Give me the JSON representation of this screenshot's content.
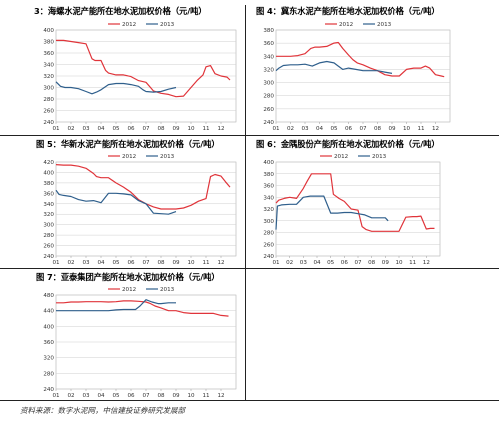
{
  "source": "资料来源：数字水泥网，中信建投证券研究发展部",
  "chart_data": [
    {
      "type": "line",
      "title": "3：海螺水泥产能所在地水泥加权价格（元/吨）",
      "categories": [
        "01",
        "02",
        "03",
        "04",
        "05",
        "06",
        "07",
        "08",
        "09",
        "10",
        "11",
        "12"
      ],
      "ylim": [
        240,
        400
      ],
      "yticks": [
        240,
        260,
        280,
        300,
        320,
        340,
        360,
        380,
        400
      ],
      "legend": "top",
      "series": [
        {
          "name": "2012",
          "color": "#e0343a",
          "x": [
            1,
            1.5,
            2,
            2.5,
            3,
            3.4,
            3.6,
            4,
            4.3,
            4.5,
            5,
            5.5,
            6,
            6.5,
            7,
            7.3,
            7.5,
            8,
            8.5,
            9,
            9.5,
            10,
            10.4,
            10.8,
            11,
            11.3,
            11.6,
            12,
            12.4,
            12.6
          ],
          "values": [
            382,
            382,
            380,
            378,
            376,
            350,
            347,
            347,
            330,
            325,
            322,
            322,
            319,
            312,
            309,
            300,
            294,
            290,
            288,
            284,
            285,
            300,
            312,
            322,
            336,
            338,
            324,
            320,
            318,
            313
          ]
        },
        {
          "name": "2013",
          "color": "#2f5f8c",
          "x": [
            1,
            1.3,
            1.6,
            2,
            2.5,
            3,
            3.4,
            3.7,
            4,
            4.5,
            5,
            5.5,
            6,
            6.5,
            6.8,
            7,
            7.5,
            8,
            8.5,
            9
          ],
          "values": [
            310,
            302,
            300,
            300,
            298,
            293,
            289,
            292,
            296,
            305,
            307,
            307,
            305,
            302,
            296,
            293,
            292,
            293,
            297,
            300
          ]
        }
      ]
    },
    {
      "type": "line",
      "title": "图 4：冀东水泥产能所在地水泥加权价格（元/吨）",
      "categories": [
        "01",
        "02",
        "03",
        "04",
        "05",
        "06",
        "07",
        "08",
        "09",
        "10",
        "11",
        "12"
      ],
      "ylim": [
        240,
        380
      ],
      "yticks": [
        240,
        260,
        280,
        300,
        320,
        340,
        360,
        380
      ],
      "legend": "top",
      "series": [
        {
          "name": "2012",
          "color": "#e0343a",
          "x": [
            1,
            1.5,
            2,
            2.5,
            3,
            3.4,
            3.7,
            4,
            4.5,
            5,
            5.3,
            5.6,
            6,
            6.3,
            6.6,
            7,
            7.5,
            8,
            8.5,
            9,
            9.5,
            10,
            10.5,
            11,
            11.3,
            11.6,
            12,
            12.4,
            12.6
          ],
          "values": [
            340,
            340,
            340,
            341,
            344,
            352,
            354,
            354,
            355,
            360,
            361,
            352,
            342,
            335,
            330,
            327,
            322,
            318,
            312,
            310,
            310,
            320,
            322,
            322,
            325,
            322,
            312,
            310,
            309
          ]
        },
        {
          "name": "2013",
          "color": "#2f5f8c",
          "x": [
            1,
            1.2,
            1.5,
            2,
            2.5,
            3,
            3.5,
            4,
            4.5,
            5,
            5.3,
            5.6,
            6,
            6.5,
            7,
            7.5,
            8,
            8.5,
            9
          ],
          "values": [
            318,
            322,
            326,
            327,
            327,
            328,
            325,
            330,
            332,
            330,
            325,
            320,
            322,
            320,
            318,
            318,
            318,
            316,
            314
          ]
        }
      ]
    },
    {
      "type": "line",
      "title": "图 5：华新水泥产能所在地水泥加权价格（元/吨）",
      "categories": [
        "01",
        "02",
        "03",
        "04",
        "05",
        "06",
        "07",
        "08",
        "09",
        "10",
        "11",
        "12"
      ],
      "ylim": [
        240,
        420
      ],
      "yticks": [
        240,
        260,
        280,
        300,
        320,
        340,
        360,
        380,
        400,
        420
      ],
      "legend": "top",
      "series": [
        {
          "name": "2012",
          "color": "#e0343a",
          "x": [
            1,
            1.5,
            2,
            2.5,
            3,
            3.5,
            3.7,
            4,
            4.5,
            5,
            5.5,
            6,
            6.5,
            7,
            7.5,
            8,
            8.5,
            9,
            9.5,
            10,
            10.5,
            11,
            11.3,
            11.6,
            12,
            12.3,
            12.6
          ],
          "values": [
            415,
            414,
            414,
            412,
            408,
            398,
            392,
            390,
            390,
            380,
            372,
            362,
            348,
            340,
            334,
            330,
            330,
            330,
            332,
            337,
            345,
            350,
            392,
            396,
            393,
            382,
            372
          ]
        },
        {
          "name": "2013",
          "color": "#2f5f8c",
          "x": [
            1,
            1.2,
            1.5,
            2,
            2.5,
            3,
            3.5,
            4,
            4.5,
            5,
            5.5,
            6,
            6.5,
            7,
            7.5,
            8,
            8.5,
            9
          ],
          "values": [
            366,
            358,
            356,
            354,
            348,
            345,
            346,
            342,
            360,
            360,
            359,
            357,
            346,
            340,
            322,
            321,
            320,
            325
          ]
        }
      ]
    },
    {
      "type": "line",
      "title": "图 6：金隅股份产能所在地水泥加权价格（元/吨）",
      "categories": [
        "01",
        "02",
        "03",
        "04",
        "05",
        "06",
        "07",
        "08",
        "09",
        "10",
        "11",
        "12"
      ],
      "ylim": [
        240,
        400
      ],
      "yticks": [
        240,
        260,
        280,
        300,
        320,
        340,
        360,
        380,
        400
      ],
      "legend": "top",
      "series": [
        {
          "name": "2012",
          "color": "#e0343a",
          "x": [
            1,
            1.2,
            1.6,
            2,
            2.5,
            3,
            3.3,
            3.6,
            4,
            4.5,
            5,
            5.2,
            5.6,
            6,
            6.5,
            7,
            7.3,
            7.6,
            8,
            8.5,
            9,
            9.5,
            10,
            10.5,
            11,
            11.3,
            11.6,
            12,
            12.3,
            12.6
          ],
          "values": [
            330,
            335,
            338,
            340,
            338,
            355,
            368,
            380,
            380,
            380,
            380,
            345,
            338,
            333,
            320,
            318,
            290,
            285,
            282,
            282,
            282,
            282,
            282,
            306,
            307,
            307,
            308,
            286,
            287,
            287
          ]
        },
        {
          "name": "2013",
          "color": "#2f5f8c",
          "x": [
            1,
            1.1,
            1.4,
            2,
            2.5,
            3,
            3.5,
            4,
            4.5,
            5,
            5.5,
            6,
            6.5,
            7,
            7.5,
            8,
            8.5,
            9,
            9.2
          ],
          "values": [
            285,
            325,
            327,
            328,
            328,
            340,
            342,
            342,
            342,
            313,
            313,
            314,
            314,
            312,
            310,
            305,
            305,
            305,
            300
          ]
        }
      ]
    },
    {
      "type": "line",
      "title": "图 7：亚泰集团产能所在地水泥加权价格（元/吨）",
      "categories": [
        "01",
        "02",
        "03",
        "04",
        "05",
        "06",
        "07",
        "08",
        "09",
        "10",
        "11",
        "12"
      ],
      "ylim": [
        240,
        480
      ],
      "yticks": [
        240,
        280,
        320,
        360,
        400,
        440,
        480
      ],
      "legend": "top",
      "series": [
        {
          "name": "2012",
          "color": "#e0343a",
          "x": [
            1,
            1.5,
            2,
            2.5,
            3,
            3.5,
            4,
            4.5,
            5,
            5.5,
            6,
            6.5,
            7,
            7.3,
            7.6,
            8,
            8.5,
            9,
            9.5,
            10,
            10.5,
            11,
            11.5,
            12,
            12.5
          ],
          "values": [
            460,
            460,
            462,
            462,
            463,
            463,
            463,
            462,
            463,
            465,
            465,
            464,
            462,
            458,
            452,
            447,
            440,
            440,
            435,
            433,
            433,
            433,
            433,
            428,
            426
          ]
        },
        {
          "name": "2013",
          "color": "#2f5f8c",
          "x": [
            1,
            1.5,
            2,
            2.5,
            3,
            3.5,
            4,
            4.5,
            5,
            5.5,
            6,
            6.3,
            6.6,
            7,
            7.4,
            7.8,
            8,
            8.5,
            9
          ],
          "values": [
            440,
            440,
            440,
            440,
            440,
            440,
            440,
            440,
            442,
            443,
            443,
            443,
            452,
            468,
            462,
            458,
            458,
            460,
            460
          ]
        }
      ]
    }
  ]
}
